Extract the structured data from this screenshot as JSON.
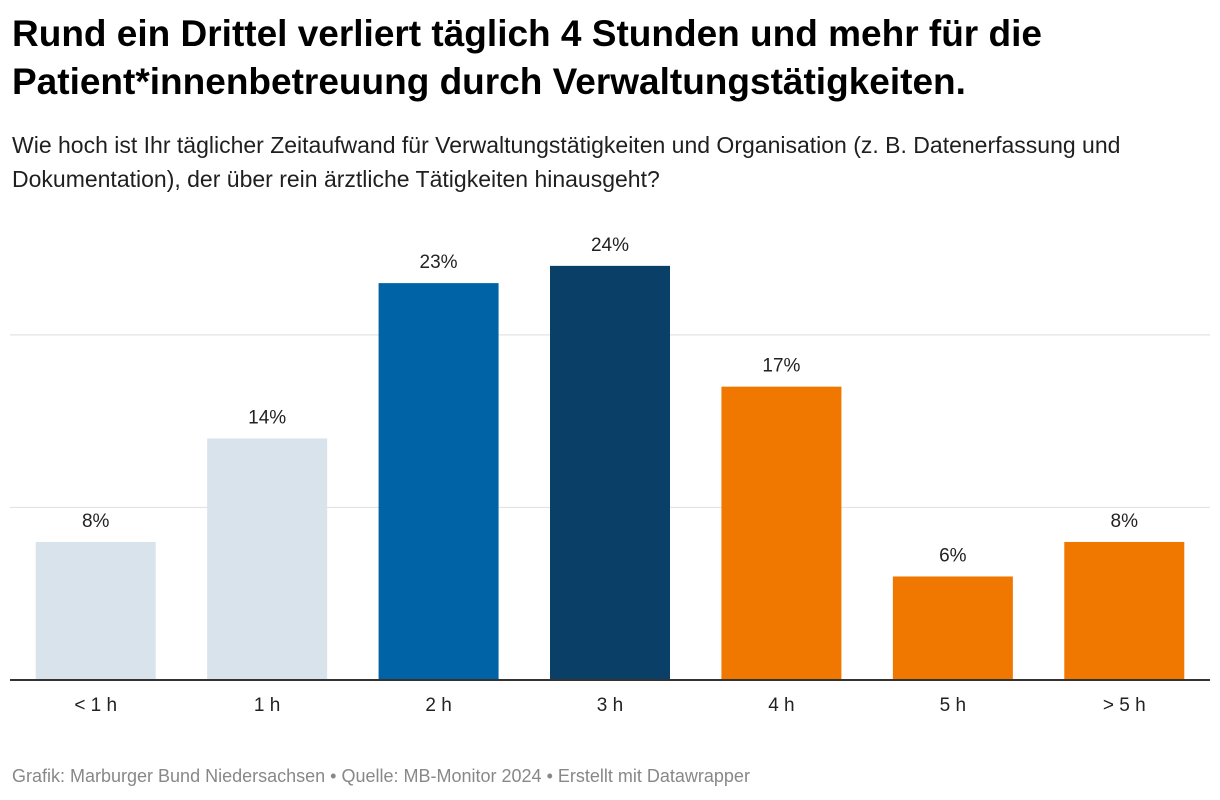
{
  "title": "Rund ein Drittel verliert täglich 4 Stunden und mehr für die Patient*innenbetreuung durch Verwaltungstätigkeiten.",
  "subtitle": "Wie hoch ist Ihr täglicher Zeitaufwand für Verwaltungstätigkeiten und Organisation (z. B. Datenerfassung und Dokumentation), der über rein ärztliche Tätigkeiten hinausgeht?",
  "footer": {
    "grafik": "Grafik: Marburger Bund Niedersachsen",
    "separator": " • ",
    "quelle": "Quelle: MB-Monitor 2024",
    "erstellt": "Erstellt mit Datawrapper"
  },
  "chart_data": {
    "type": "bar",
    "categories": [
      "< 1 h",
      "1 h",
      "2 h",
      "3 h",
      "4 h",
      "5 h",
      "> 5 h"
    ],
    "values": [
      8,
      14,
      23,
      24,
      17,
      6,
      8
    ],
    "value_labels": [
      "8%",
      "14%",
      "23%",
      "24%",
      "17%",
      "6%",
      "8%"
    ],
    "colors": [
      "#d9e3ec",
      "#d9e3ec",
      "#0063a6",
      "#0a3f68",
      "#f07800",
      "#f07800",
      "#f07800"
    ],
    "unit": "%",
    "ylim": [
      0,
      26.6
    ],
    "gridlines": [
      10,
      20
    ],
    "grid": true,
    "legend": "none"
  }
}
